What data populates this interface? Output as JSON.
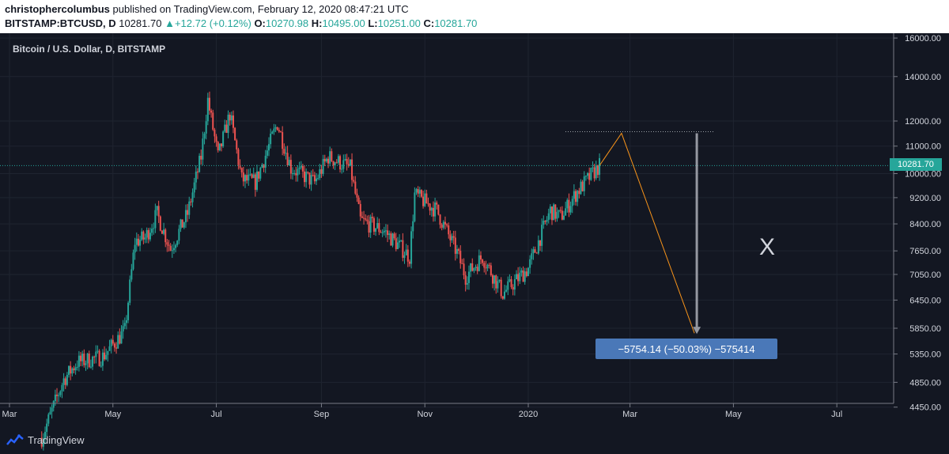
{
  "header": {
    "author": "christophercolumbus",
    "published": " published on TradingView.com, February 12, 2020 08:47:21 UTC",
    "symbol": "BITSTAMP:BTCUSD, D",
    "price": "10281.70",
    "change": "+12.72 (+0.12%)",
    "o_label": "O:",
    "o_value": "10270.98",
    "h_label": "H:",
    "h_value": "10495.00",
    "l_label": "L:",
    "l_value": "10251.00",
    "c_label": "C:",
    "c_value": "10281.70"
  },
  "chart_data": {
    "type": "candlestick",
    "title": "Bitcoin / U.S. Dollar, D, BITSTAMP",
    "x_tick_labels": [
      "Mar",
      "May",
      "Jul",
      "Sep",
      "Nov",
      "2020",
      "Mar",
      "May",
      "Jul"
    ],
    "y_tick_labels": [
      "16000.00",
      "14000.00",
      "12000.00",
      "11000.00",
      "10000.00",
      "9200.00",
      "8400.00",
      "7650.00",
      "7050.00",
      "6450.00",
      "5850.00",
      "5350.00",
      "4850.00",
      "4450.00"
    ],
    "y_scale": "log",
    "ylim": [
      4400,
      16500
    ],
    "last_price": "10281.70",
    "price_path": [
      {
        "date": "2019-03-20",
        "close": 4000
      },
      {
        "date": "2019-04-02",
        "close": 4900
      },
      {
        "date": "2019-04-10",
        "close": 5200
      },
      {
        "date": "2019-04-25",
        "close": 5300
      },
      {
        "date": "2019-05-08",
        "close": 5800
      },
      {
        "date": "2019-05-14",
        "close": 7900
      },
      {
        "date": "2019-05-20",
        "close": 8000
      },
      {
        "date": "2019-05-27",
        "close": 8700
      },
      {
        "date": "2019-06-04",
        "close": 7700
      },
      {
        "date": "2019-06-14",
        "close": 8700
      },
      {
        "date": "2019-06-22",
        "close": 10600
      },
      {
        "date": "2019-06-26",
        "close": 12900
      },
      {
        "date": "2019-07-02",
        "close": 10600
      },
      {
        "date": "2019-07-09",
        "close": 12300
      },
      {
        "date": "2019-07-16",
        "close": 9800
      },
      {
        "date": "2019-07-24",
        "close": 9700
      },
      {
        "date": "2019-08-06",
        "close": 11900
      },
      {
        "date": "2019-08-14",
        "close": 10200
      },
      {
        "date": "2019-08-28",
        "close": 9700
      },
      {
        "date": "2019-09-05",
        "close": 10600
      },
      {
        "date": "2019-09-18",
        "close": 10200
      },
      {
        "date": "2019-09-24",
        "close": 8500
      },
      {
        "date": "2019-10-08",
        "close": 8200
      },
      {
        "date": "2019-10-23",
        "close": 7500
      },
      {
        "date": "2019-10-26",
        "close": 9300
      },
      {
        "date": "2019-11-08",
        "close": 8800
      },
      {
        "date": "2019-11-20",
        "close": 7600
      },
      {
        "date": "2019-11-25",
        "close": 7000
      },
      {
        "date": "2019-12-05",
        "close": 7500
      },
      {
        "date": "2019-12-17",
        "close": 6600
      },
      {
        "date": "2020-01-01",
        "close": 7200
      },
      {
        "date": "2020-01-14",
        "close": 8800
      },
      {
        "date": "2020-01-20",
        "close": 8600
      },
      {
        "date": "2020-01-30",
        "close": 9400
      },
      {
        "date": "2020-02-12",
        "close": 10281.7
      }
    ],
    "projection": {
      "points": [
        {
          "date": "2020-02-12",
          "price": 10281.7
        },
        {
          "date": "2020-02-25",
          "price": 11500
        },
        {
          "date": "2020-04-08",
          "price": 5750
        }
      ],
      "horizontal_level": 11500,
      "measure_label": "−5754.14 (−50.03%) −575414"
    },
    "annotation": "X",
    "grid": true
  },
  "footer": {
    "brand": "TradingView"
  }
}
